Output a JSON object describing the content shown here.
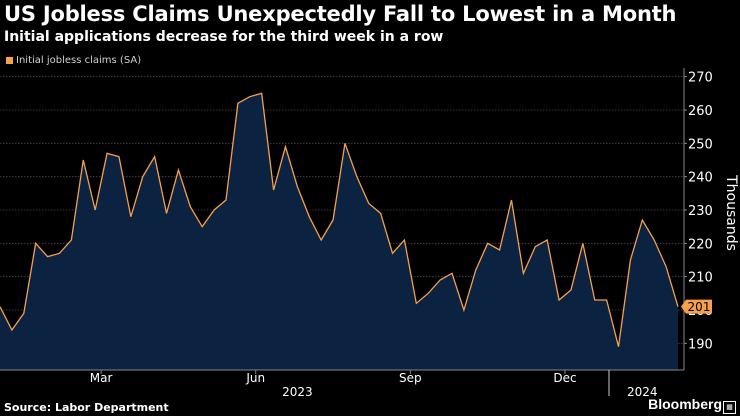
{
  "header": {
    "title": "US Jobless Claims Unexpectedly Fall to Lowest in a Month",
    "subtitle": "Initial applications decrease for the third week in a row"
  },
  "footer": {
    "source": "Source: Labor Department",
    "brand": "Bloomberg"
  },
  "colors": {
    "background": "#000000",
    "line": "#f5a04a",
    "area": "#0b2340",
    "grid": "#4a4a4a",
    "text": "#ffffff"
  },
  "chart_data": {
    "type": "area",
    "title": "US Jobless Claims Unexpectedly Fall to Lowest in a Month",
    "subtitle": "Initial applications decrease for the third week in a row",
    "ylabel": "Thousands",
    "xlabel": "",
    "ylim": [
      182,
      272
    ],
    "yticks": [
      190,
      200,
      210,
      220,
      230,
      240,
      250,
      260,
      270
    ],
    "grid": true,
    "legend_position": "top-left",
    "series": [
      {
        "name": "Initial jobless claims (SA)",
        "values": [
          201,
          194,
          199,
          220,
          216,
          217,
          221,
          245,
          230,
          247,
          246,
          228,
          240,
          246,
          229,
          242,
          231,
          225,
          230,
          233,
          262,
          264,
          265,
          236,
          249,
          237,
          228,
          221,
          227,
          250,
          240,
          232,
          229,
          217,
          221,
          202,
          205,
          209,
          211,
          200,
          212,
          220,
          218,
          233,
          211,
          219,
          221,
          203,
          206,
          220,
          203,
          203,
          189,
          215,
          227,
          221,
          213,
          201
        ]
      }
    ],
    "month_labels": [
      {
        "label": "Mar",
        "week_index": 8.5
      },
      {
        "label": "Jun",
        "week_index": 21.5
      },
      {
        "label": "Sep",
        "week_index": 34.5
      },
      {
        "label": "Dec",
        "week_index": 47.5
      }
    ],
    "year_labels": [
      {
        "label": "2023",
        "week_index": 25
      },
      {
        "label": "2024",
        "week_index": 54
      }
    ],
    "year_divider_week_index": 51.2,
    "last_value_label": "201"
  }
}
